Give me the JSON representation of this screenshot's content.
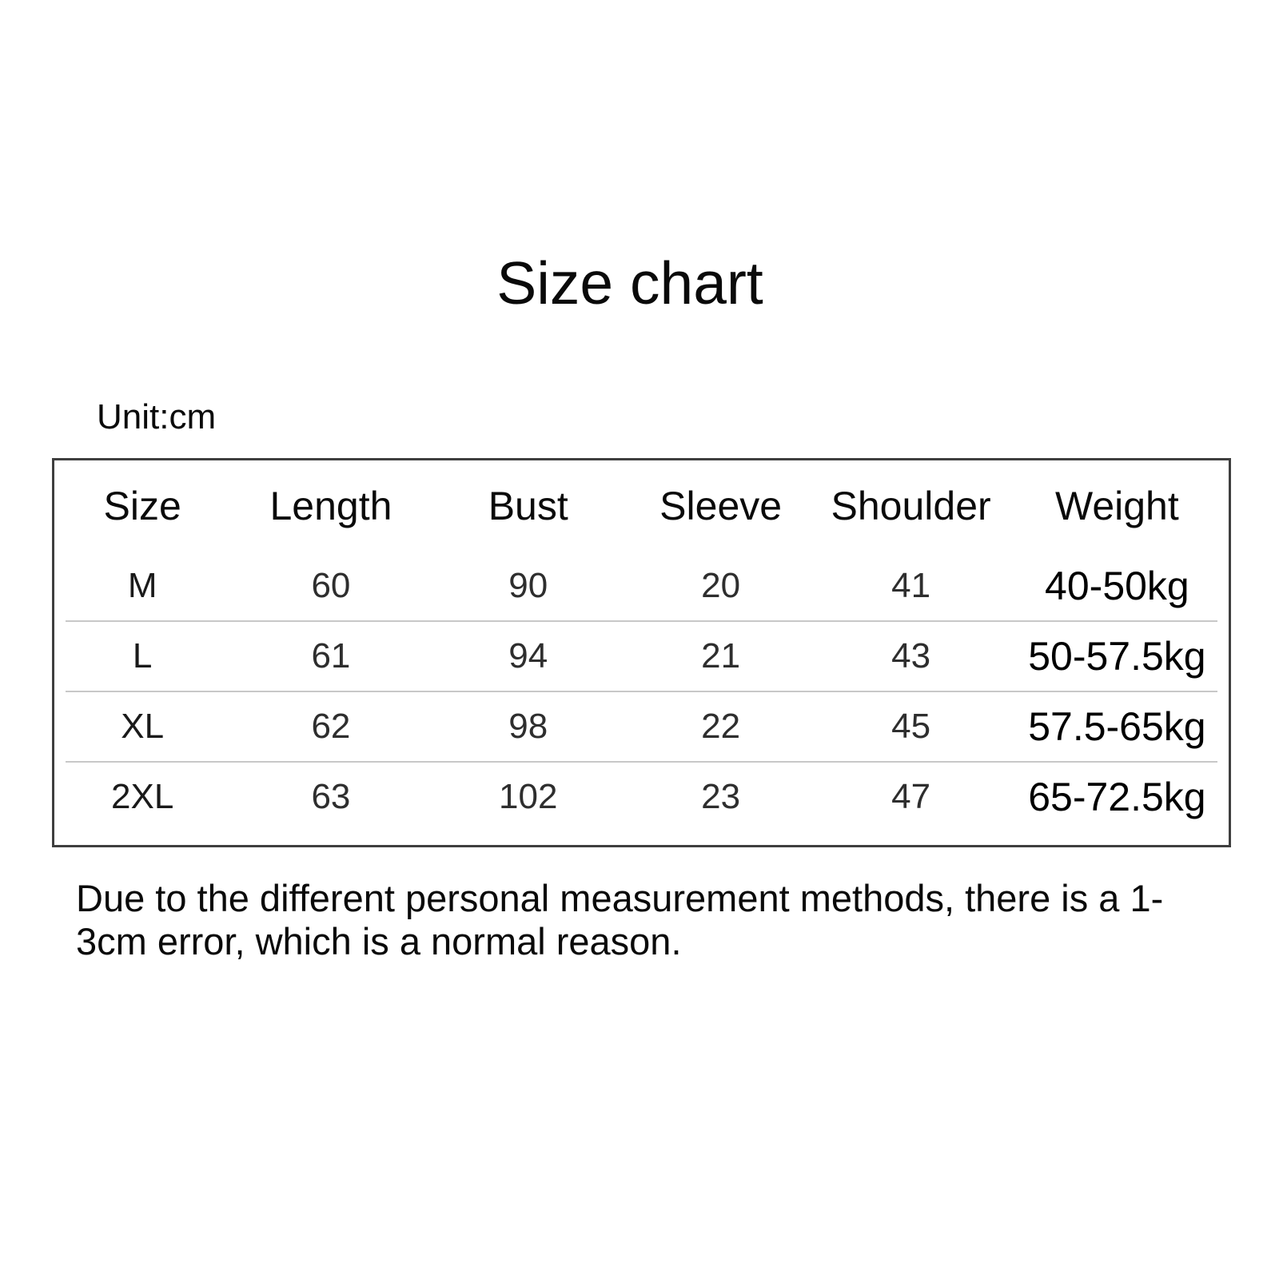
{
  "header": {
    "title": "Size chart"
  },
  "table_section": {
    "unit_label": "Unit:cm"
  },
  "footer": {
    "note": "Due to the different personal measurement methods, there is a 1-3cm error, which is a normal reason."
  },
  "colors": {
    "background": "#ffffff",
    "text": "#0a0a0a",
    "table_border": "#3f3f3f",
    "row_divider": "#c8c8c8"
  },
  "chart_data": {
    "type": "table",
    "title": "Size chart",
    "unit": "cm",
    "columns": [
      "Size",
      "Length",
      "Bust",
      "Sleeve",
      "Shoulder",
      "Weight"
    ],
    "rows": [
      {
        "size": "M",
        "length": 60,
        "bust": 90,
        "sleeve": 20,
        "shoulder": 41,
        "weight": "40-50kg"
      },
      {
        "size": "L",
        "length": 61,
        "bust": 94,
        "sleeve": 21,
        "shoulder": 43,
        "weight": "50-57.5kg"
      },
      {
        "size": "XL",
        "length": 62,
        "bust": 98,
        "sleeve": 22,
        "shoulder": 45,
        "weight": "57.5-65kg"
      },
      {
        "size": "2XL",
        "length": 63,
        "bust": 102,
        "sleeve": 23,
        "shoulder": 47,
        "weight": "65-72.5kg"
      }
    ],
    "note": "Due to the different personal measurement methods, there is a 1-3cm error, which is a normal reason.",
    "layout_hints": {
      "grid": "horizontal row dividers between data rows only",
      "legend": "none"
    }
  }
}
